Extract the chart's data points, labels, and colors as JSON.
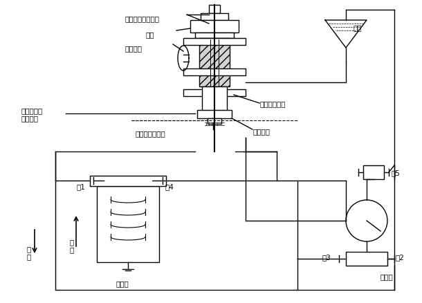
{
  "bg_color": "#ffffff",
  "line_color": "#000000",
  "line_width": 1.0,
  "font_size": 8,
  "title": "",
  "labels": {
    "chengzhong": "承重杆、滚花螺母",
    "feilun": "飞轮",
    "suojin": "锁紧手柄",
    "celiang": "测量负压时\n飞轮位置",
    "gongzuo": "工作位置指示线",
    "huosai": "活塞、活塞筒",
    "gunhua": "滚花螺母",
    "youbei": "油杯",
    "fa5": "阀5",
    "fa1": "阀1",
    "fa4": "阀4",
    "fa2": "阀2",
    "fa3": "阀3",
    "choukong": "抽\n空",
    "jiaya": "加\n压",
    "weitiao": "微调器",
    "tongtaqi": "通大气"
  }
}
